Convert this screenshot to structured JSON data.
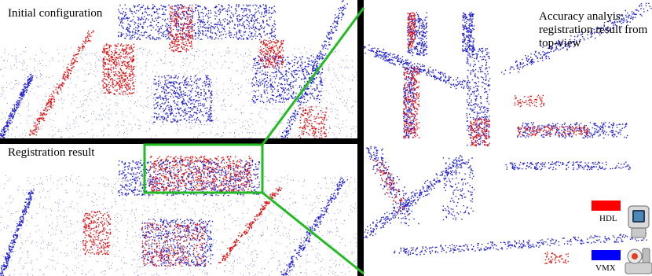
{
  "panels": {
    "top": {
      "caption": "Initial configuration"
    },
    "bottom": {
      "caption": "Registration result"
    },
    "right": {
      "caption": "Accuracy analyis: registration result from top-view"
    }
  },
  "legend": [
    {
      "label": "HDL",
      "color": "#ff0000"
    },
    {
      "label": "VMX",
      "color": "#0000ff"
    }
  ],
  "colors": {
    "hdl_points": "#e01010",
    "vmx_points": "#2020d0",
    "zoom_frame": "#22bb22",
    "divider": "#000000"
  }
}
